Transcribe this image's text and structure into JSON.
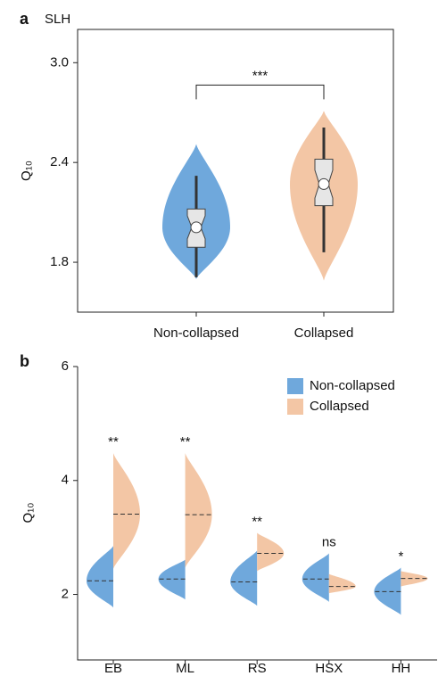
{
  "chart_data": [
    {
      "type": "violin",
      "panel": "a",
      "title": "SLH",
      "y_label": "Q₁₀",
      "categories": [
        "Non-collapsed",
        "Collapsed"
      ],
      "colors": [
        "#6fa8dc",
        "#f3c6a5"
      ],
      "min": [
        1.7,
        1.69
      ],
      "whisker_low": [
        1.71,
        1.86
      ],
      "q1": [
        1.89,
        2.14
      ],
      "median": [
        2.01,
        2.27
      ],
      "q3": [
        2.12,
        2.42
      ],
      "whisker_high": [
        2.32,
        2.61
      ],
      "max": [
        2.51,
        2.71
      ],
      "ylim": [
        1.5,
        3.2
      ],
      "yticks": [
        1.8,
        2.4,
        {
          "value": 3,
          "label": "3.0"
        }
      ],
      "significance": "***"
    },
    {
      "type": "split-violin",
      "panel": "b",
      "y_label": "Q₁₀",
      "categories": [
        "EB",
        "ML",
        "RS",
        "HSX",
        "HH"
      ],
      "series": [
        {
          "name": "Non-collapsed",
          "color": "#6fa8dc",
          "min": [
            1.77,
            1.91,
            1.8,
            1.87,
            1.64
          ],
          "median": [
            2.24,
            2.27,
            2.22,
            2.27,
            2.05
          ],
          "max": [
            2.85,
            2.61,
            2.77,
            2.72,
            2.47
          ]
        },
        {
          "name": "Collapsed",
          "color": "#f3c6a5",
          "min": [
            2.45,
            2.47,
            2.41,
            2.02,
            2.14
          ],
          "median": [
            3.41,
            3.4,
            2.72,
            2.14,
            2.28
          ],
          "max": [
            4.48,
            4.48,
            3.08,
            2.36,
            2.41
          ]
        }
      ],
      "significance": [
        "**",
        "**",
        "**",
        "ns",
        "*"
      ],
      "ylim": [
        0.85,
        6
      ],
      "yticks": [
        2,
        4,
        6
      ],
      "legend": "upper right"
    }
  ]
}
